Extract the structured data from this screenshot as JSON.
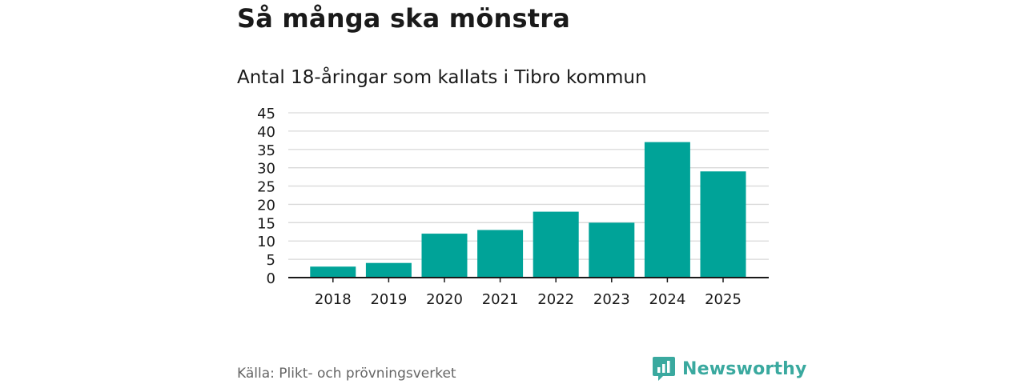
{
  "header": {
    "title": "Så många ska mönstra",
    "subtitle": "Antal 18-åringar som kallats i Tibro kommun"
  },
  "footer": {
    "source": "Källa: Plikt- och prövningsverket",
    "brand": "Newsworthy",
    "brand_icon": "bar-chart-logo-icon"
  },
  "colors": {
    "bar": "#00a398",
    "brand": "#3aa99f",
    "grid": "#d9d9d9",
    "axis": "#1a1a1a",
    "text": "#1a1a1a"
  },
  "chart_data": {
    "type": "bar",
    "title": "Så många ska mönstra",
    "subtitle": "Antal 18-åringar som kallats i Tibro kommun",
    "xlabel": "",
    "ylabel": "",
    "categories": [
      "2018",
      "2019",
      "2020",
      "2021",
      "2022",
      "2023",
      "2024",
      "2025"
    ],
    "values": [
      3,
      4,
      12,
      13,
      18,
      15,
      37,
      29
    ],
    "ylim": [
      0,
      45
    ],
    "yticks": [
      "0",
      "5",
      "10",
      "15",
      "20",
      "25",
      "30",
      "35",
      "40",
      "45"
    ],
    "grid": true,
    "legend": "none"
  }
}
